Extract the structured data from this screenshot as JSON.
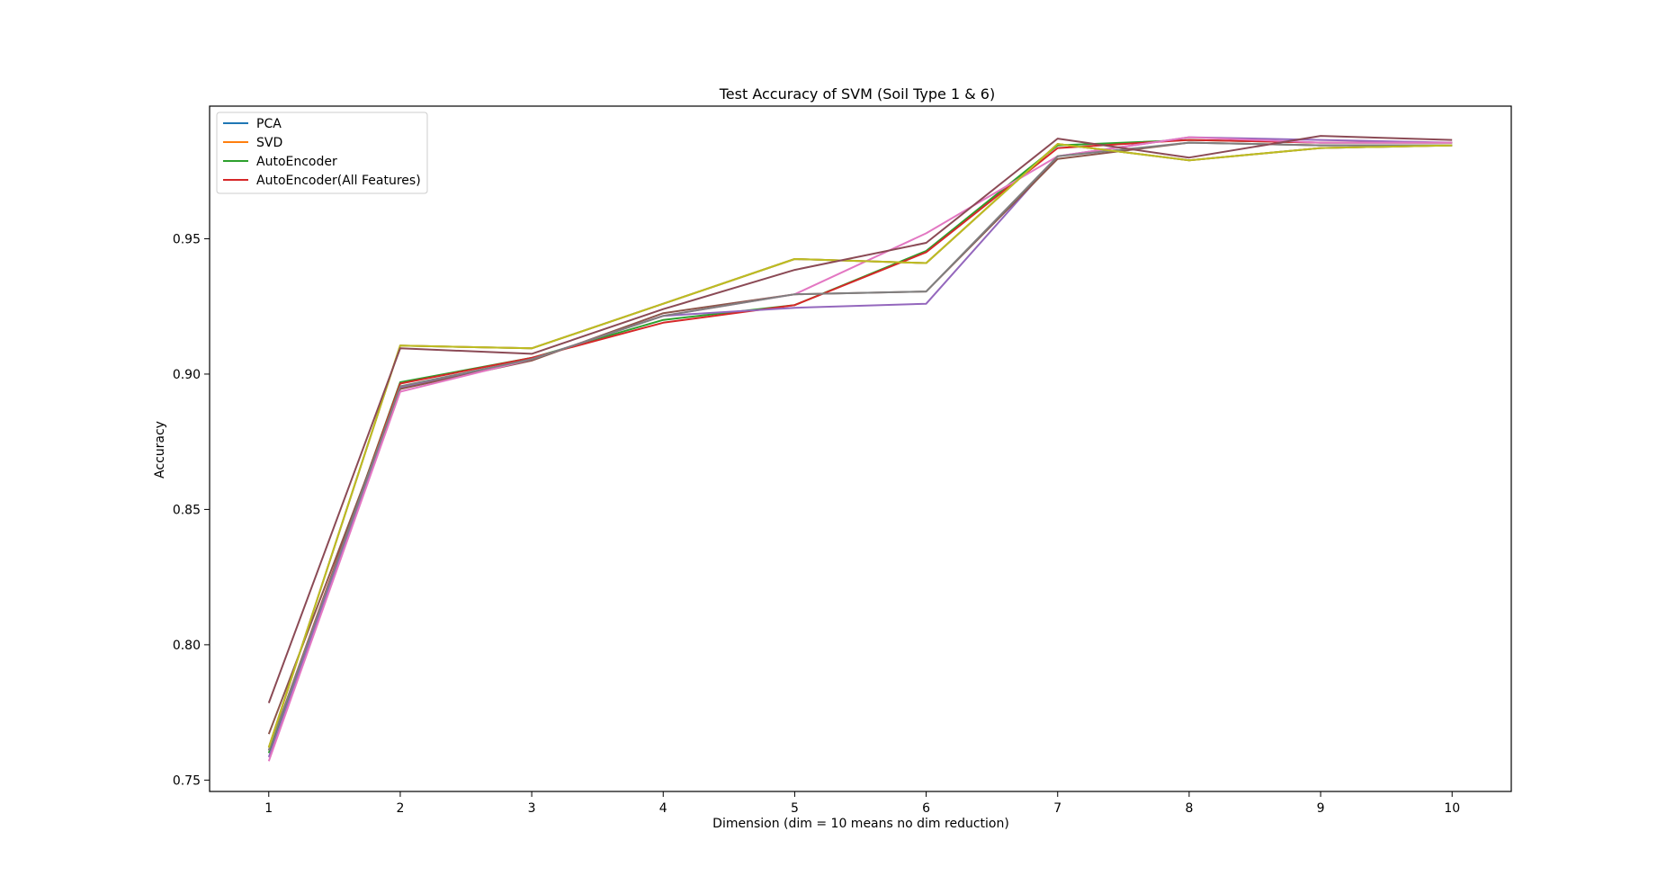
{
  "chart_data": {
    "type": "line",
    "title": "Test Accuracy of SVM (Soil Type 1 & 6)",
    "xlabel": "Dimension (dim = 10 means no dim reduction)",
    "ylabel": "Accuracy",
    "x": [
      1,
      2,
      3,
      4,
      5,
      6,
      7,
      8,
      9,
      10
    ],
    "xticks": [
      "1",
      "2",
      "3",
      "4",
      "5",
      "6",
      "7",
      "8",
      "9",
      "10"
    ],
    "yticks": [
      "0.75",
      "0.80",
      "0.85",
      "0.90",
      "0.95"
    ],
    "ytick_values": [
      0.75,
      0.8,
      0.85,
      0.9,
      0.95
    ],
    "xlim": [
      0.55,
      10.45
    ],
    "ylim": [
      0.7458,
      0.999
    ],
    "legend_position": "top-left",
    "legend": [
      "PCA",
      "SVD",
      "AutoEncoder",
      "AutoEncoder(All Features)"
    ],
    "series": [
      {
        "name": "PCA",
        "color": "#1f77b4",
        "legend": true,
        "values": [
          0.762,
          0.9105,
          0.9095,
          0.926,
          0.9425,
          0.941,
          0.985,
          0.979,
          0.9835,
          0.9845
        ]
      },
      {
        "name": "SVD",
        "color": "#ff7f0e",
        "legend": true,
        "values": [
          0.762,
          0.9105,
          0.9095,
          0.926,
          0.9425,
          0.941,
          0.985,
          0.979,
          0.9835,
          0.9845
        ]
      },
      {
        "name": "AutoEncoder",
        "color": "#2ca02c",
        "legend": true,
        "values": [
          0.76,
          0.897,
          0.906,
          0.92,
          0.9255,
          0.9455,
          0.9845,
          0.9865,
          0.9855,
          0.9855
        ]
      },
      {
        "name": "AutoEncoder(All Features)",
        "color": "#d62728",
        "legend": true,
        "values": [
          0.761,
          0.8965,
          0.906,
          0.919,
          0.9255,
          0.945,
          0.9835,
          0.9865,
          0.9855,
          0.9855
        ]
      },
      {
        "name": "",
        "color": "#9467bd",
        "legend": false,
        "values": [
          0.7585,
          0.895,
          0.9055,
          0.9215,
          0.9245,
          0.926,
          0.9805,
          0.9875,
          0.9865,
          0.9855
        ]
      },
      {
        "name": "",
        "color": "#8c564b",
        "legend": false,
        "values": [
          0.767,
          0.8945,
          0.905,
          0.9225,
          0.9295,
          0.9305,
          0.9795,
          0.9855,
          0.9845,
          0.9845
        ]
      },
      {
        "name": "",
        "color": "#e377c2",
        "legend": false,
        "values": [
          0.757,
          0.8935,
          0.9055,
          0.9215,
          0.9295,
          0.952,
          0.9805,
          0.9875,
          0.9855,
          0.9855
        ]
      },
      {
        "name": "",
        "color": "#7f7f7f",
        "legend": false,
        "values": [
          0.761,
          0.8955,
          0.9055,
          0.9215,
          0.9295,
          0.9305,
          0.9805,
          0.9855,
          0.9845,
          0.9845
        ]
      },
      {
        "name": "",
        "color": "#bcbd22",
        "legend": false,
        "values": [
          0.762,
          0.9105,
          0.9095,
          0.926,
          0.9425,
          0.941,
          0.985,
          0.979,
          0.9835,
          0.9845
        ]
      },
      {
        "name": "",
        "color": "#8b4a55",
        "legend": false,
        "values": [
          0.7785,
          0.9095,
          0.9075,
          0.924,
          0.9385,
          0.9485,
          0.987,
          0.98,
          0.988,
          0.9865
        ]
      }
    ]
  }
}
